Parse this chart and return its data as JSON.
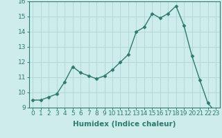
{
  "xlabel": "Humidex (Indice chaleur)",
  "x": [
    0,
    1,
    2,
    3,
    4,
    5,
    6,
    7,
    8,
    9,
    10,
    11,
    12,
    13,
    14,
    15,
    16,
    17,
    18,
    19,
    20,
    21,
    22,
    23
  ],
  "y": [
    9.5,
    9.5,
    9.7,
    9.9,
    10.7,
    11.7,
    11.3,
    11.1,
    10.9,
    11.1,
    11.5,
    12.0,
    12.5,
    14.0,
    14.3,
    15.2,
    14.9,
    15.2,
    15.7,
    14.4,
    12.4,
    10.8,
    9.3,
    8.7
  ],
  "line_color": "#2d7a6e",
  "marker": "D",
  "marker_size": 2.5,
  "bg_color": "#cdecea",
  "grid_color": "#b2d9d5",
  "ylim": [
    9,
    16
  ],
  "xlim_min": -0.5,
  "xlim_max": 23.5,
  "yticks": [
    9,
    10,
    11,
    12,
    13,
    14,
    15,
    16
  ],
  "xticks": [
    0,
    1,
    2,
    3,
    4,
    5,
    6,
    7,
    8,
    9,
    10,
    11,
    12,
    13,
    14,
    15,
    16,
    17,
    18,
    19,
    20,
    21,
    22,
    23
  ],
  "tick_label_fontsize": 6.5,
  "xlabel_fontsize": 7.5,
  "line_width": 1.0
}
